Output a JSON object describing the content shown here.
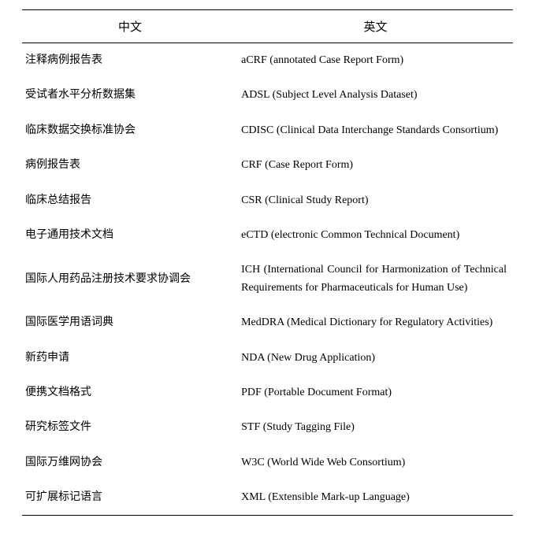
{
  "table": {
    "headers": {
      "cn": "中文",
      "en": "英文"
    },
    "rows": [
      {
        "cn": "注释病例报告表",
        "en": "aCRF (annotated Case Report Form)",
        "justify": false
      },
      {
        "cn": "受试者水平分析数据集",
        "en": "ADSL (Subject Level Analysis Dataset)",
        "justify": false
      },
      {
        "cn": "临床数据交换标准协会",
        "en": "CDISC (Clinical Data Interchange Standards Consortium)",
        "justify": true
      },
      {
        "cn": "病例报告表",
        "en": "CRF (Case Report Form)",
        "justify": false
      },
      {
        "cn": "临床总结报告",
        "en": "CSR (Clinical Study Report)",
        "justify": false
      },
      {
        "cn": "电子通用技术文档",
        "en": "eCTD (electronic Common Technical Document)",
        "justify": false
      },
      {
        "cn": "国际人用药品注册技术要求协调会",
        "en": "ICH (International Council for Harmonization of Technical Requirements for Pharmaceuticals for Human Use)",
        "justify": true
      },
      {
        "cn": "国际医学用语词典",
        "en": "MedDRA (Medical Dictionary for Regulatory Activities)",
        "justify": true
      },
      {
        "cn": "新药申请",
        "en": "NDA (New Drug Application)",
        "justify": false
      },
      {
        "cn": "便携文档格式",
        "en": "PDF (Portable Document Format)",
        "justify": false
      },
      {
        "cn": "研究标签文件",
        "en": "STF (Study Tagging File)",
        "justify": false
      },
      {
        "cn": "国际万维网协会",
        "en": "W3C (World Wide Web Consortium)",
        "justify": false
      },
      {
        "cn": "可扩展标记语言",
        "en": "XML (Extensible Mark-up Language)",
        "justify": false
      }
    ],
    "styling": {
      "border_color": "#000000",
      "top_border_width": 1.5,
      "header_bottom_border_width": 1.0,
      "bottom_border_width": 1.5,
      "background_color": "#ffffff",
      "header_fontsize": 15,
      "body_fontsize": 14,
      "font_family": "SimSun / Times New Roman",
      "text_color": "#000000",
      "col_cn_width_pct": 44,
      "col_en_width_pct": 56,
      "line_height": 1.6
    }
  }
}
